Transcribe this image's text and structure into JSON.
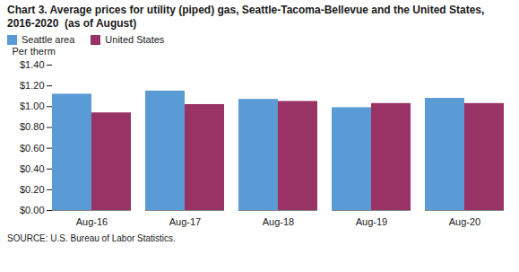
{
  "chart_data": {
    "type": "bar",
    "title": "Chart 3. Average prices for utility (piped) gas, Seattle-Tacoma-Bellevue and the United States, 2016-2020  (as of August)",
    "ylabel": "Per therm",
    "caption": "SOURCE: U.S. Bureau of Labor Statistics.",
    "categories": [
      "Aug-16",
      "Aug-17",
      "Aug-18",
      "Aug-19",
      "Aug-20"
    ],
    "series": [
      {
        "name": "Seattle area",
        "color": "#5B9BD5",
        "values": [
          1.12,
          1.15,
          1.07,
          0.99,
          1.08
        ]
      },
      {
        "name": "United States",
        "color": "#993366",
        "values": [
          0.94,
          1.02,
          1.05,
          1.03,
          1.03
        ]
      }
    ],
    "ylim": [
      0,
      1.4
    ],
    "yticks": [
      {
        "value": 0.0,
        "label": "$0.00"
      },
      {
        "value": 0.2,
        "label": "$0.20"
      },
      {
        "value": 0.4,
        "label": "$0.40"
      },
      {
        "value": 0.6,
        "label": "$0.60"
      },
      {
        "value": 0.8,
        "label": "$0.80"
      },
      {
        "value": 1.0,
        "label": "$1.00"
      },
      {
        "value": 1.2,
        "label": "$1.20"
      },
      {
        "value": 1.4,
        "label": "$1.40"
      }
    ],
    "grid": false,
    "legend": "upper left"
  }
}
